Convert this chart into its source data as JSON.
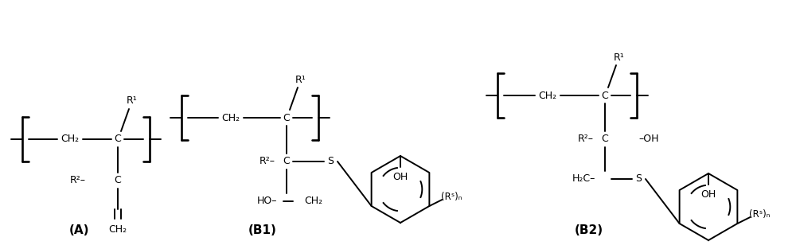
{
  "bg_color": "#ffffff",
  "text_color": "#000000",
  "label_A": "(A)",
  "label_B1": "(B1)",
  "label_B2": "(B2)",
  "figsize": [
    10.0,
    3.13
  ],
  "dpi": 100
}
